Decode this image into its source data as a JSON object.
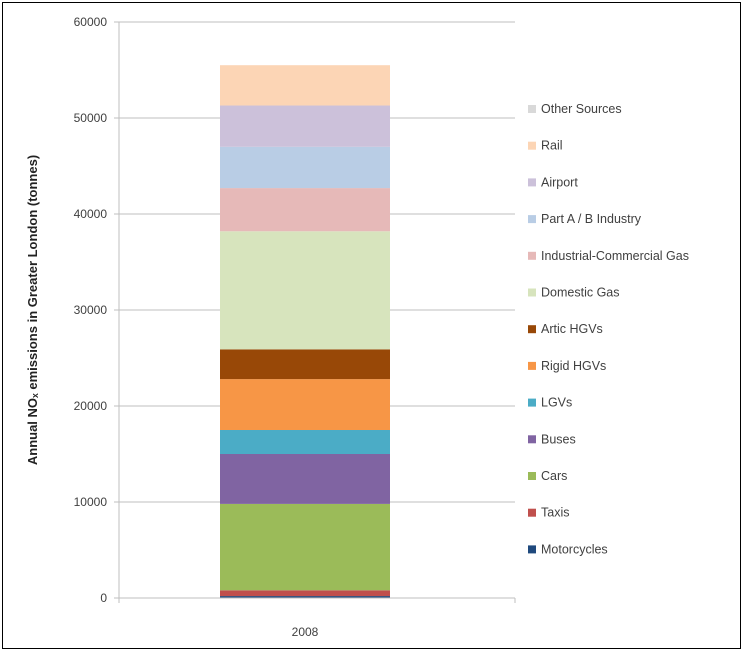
{
  "chart_data": {
    "type": "bar",
    "stacked": true,
    "categories": [
      "2008"
    ],
    "ylabel": "Annual NOₓ emissions in Greater London (tonnes)",
    "xlabel": "",
    "ylim": [
      0,
      60000
    ],
    "yticks": [
      0,
      10000,
      20000,
      30000,
      40000,
      50000,
      60000
    ],
    "grid": true,
    "legend_position": "right",
    "series": [
      {
        "name": "Motorcycles",
        "values": [
          200
        ],
        "color": "#1F497D"
      },
      {
        "name": "Taxis",
        "values": [
          600
        ],
        "color": "#C0504D"
      },
      {
        "name": "Cars",
        "values": [
          9000
        ],
        "color": "#9BBB59"
      },
      {
        "name": "Buses",
        "values": [
          5200
        ],
        "color": "#8064A2"
      },
      {
        "name": "LGVs",
        "values": [
          2500
        ],
        "color": "#4BACC6"
      },
      {
        "name": "Rigid HGVs",
        "values": [
          5300
        ],
        "color": "#F79646"
      },
      {
        "name": "Artic HGVs",
        "values": [
          3100
        ],
        "color": "#984807"
      },
      {
        "name": "Domestic Gas",
        "values": [
          12300
        ],
        "color": "#D7E4BD"
      },
      {
        "name": "Industrial-Commercial Gas",
        "values": [
          4500
        ],
        "color": "#E6B9B8"
      },
      {
        "name": "Part A / B Industry",
        "values": [
          4300
        ],
        "color": "#B9CDE5"
      },
      {
        "name": "Airport",
        "values": [
          4300
        ],
        "color": "#CCC1DA"
      },
      {
        "name": "Rail",
        "values": [
          4200
        ],
        "color": "#FCD5B5"
      },
      {
        "name": "Other Sources",
        "values": [
          0
        ],
        "color": "#D9D9D9"
      }
    ]
  }
}
